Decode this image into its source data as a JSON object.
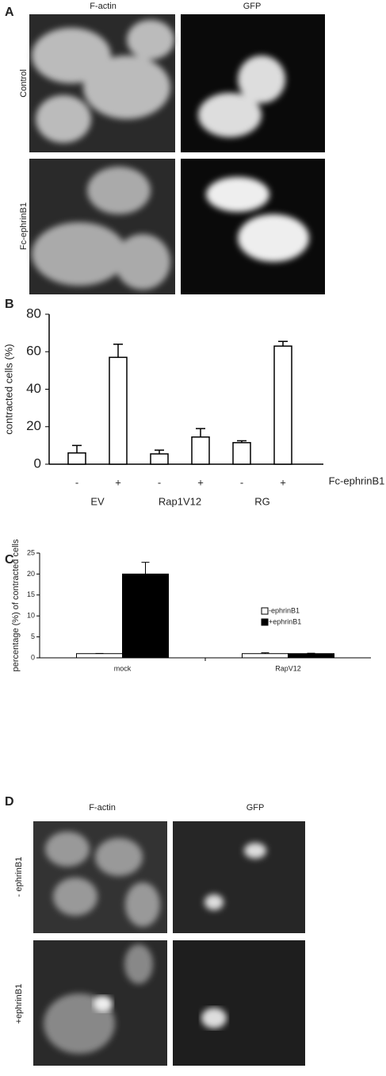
{
  "panels": {
    "A": {
      "label": "A",
      "columns": [
        "F-actin",
        "GFP"
      ],
      "rows": [
        "Control",
        "Fc-ephrinB1"
      ]
    },
    "B": {
      "label": "B"
    },
    "C": {
      "label": "C"
    },
    "D": {
      "label": "D",
      "columns": [
        "F-actin",
        "GFP"
      ],
      "rows": [
        "- ephrinB1",
        "+ephrinB1"
      ]
    }
  },
  "chart_data": [
    {
      "type": "bar",
      "ylabel": "contracted cells (%)",
      "categories": [
        "-",
        "+",
        "-",
        "+",
        "-",
        "+"
      ],
      "groups": [
        "EV",
        "Rap1V12",
        "RG"
      ],
      "x_row_label": "Fc-ephrinB1",
      "values": [
        6,
        57,
        5.5,
        14.5,
        11.5,
        63
      ],
      "errors": [
        4,
        7,
        2,
        4.5,
        1,
        2.5
      ],
      "color": "#ffffff",
      "ylim": [
        0,
        80
      ],
      "yticks": [
        0,
        20,
        40,
        60,
        80
      ]
    },
    {
      "type": "grouped-bar",
      "ylabel": "percentage (%) of contracted cells",
      "categories": [
        "mock",
        "RapV12"
      ],
      "series": [
        {
          "name": "-ephrinB1",
          "color": "#ffffff",
          "values": [
            1,
            1
          ],
          "errors": [
            0.05,
            0.2
          ]
        },
        {
          "name": "+ephrinB1",
          "color": "#000000",
          "values": [
            20,
            1
          ],
          "errors": [
            2.8,
            0.1
          ]
        }
      ],
      "ylim": [
        0,
        25
      ],
      "yticks": [
        0,
        5,
        10,
        15,
        20,
        25
      ]
    }
  ]
}
